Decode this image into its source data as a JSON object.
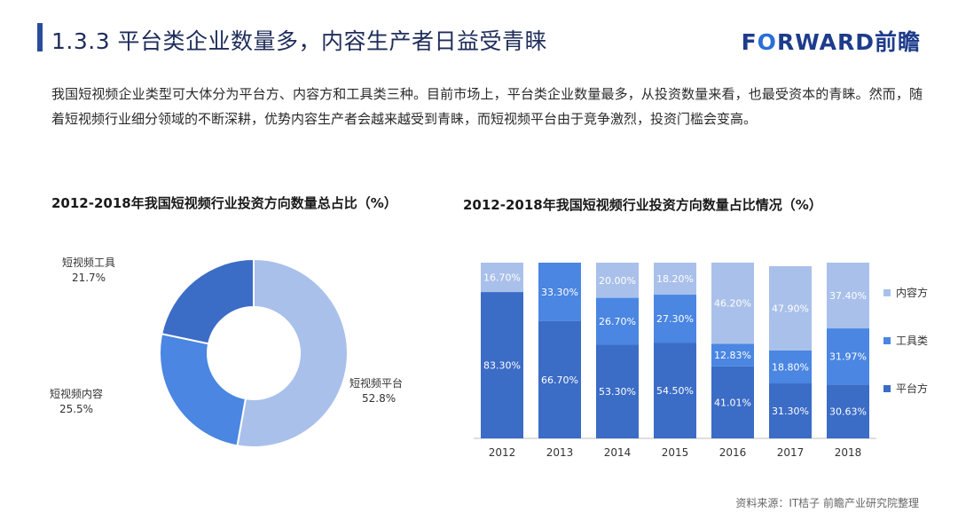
{
  "header": {
    "title": "1.3.3 平台类企业数量多，内容生产者日益受青睐",
    "logo_part1": "F",
    "logo_o": "O",
    "logo_part2": "RWARD前瞻"
  },
  "intro_text": "我国短视频企业类型可大体分为平台方、内容方和工具类三种。目前市场上，平台类企业数量最多，从投资数量来看，也最受资本的青睐。然而，随着短视频行业细分领域的不断深耕，优势内容生产者会越来越受到青睐，而短视频平台由于竞争激烈，投资门槛会变高。",
  "source": "资料来源：IT桔子 前瞻产业研究院整理",
  "colors": {
    "platform": "#3b6cc6",
    "tools": "#4a86e2",
    "content": "#a9c0ea",
    "title_bar": "#2a4d9b"
  },
  "chart_data": [
    {
      "type": "pie",
      "title": "2012-2018年我国短视频行业投资方向数量总占比（%）",
      "slices": [
        {
          "name": "短视频平台",
          "value": 52.8,
          "label": "52.8%",
          "color": "#a9c0ea"
        },
        {
          "name": "短视频内容",
          "value": 25.5,
          "label": "25.5%",
          "color": "#4a86e2"
        },
        {
          "name": "短视频工具",
          "value": 21.7,
          "label": "21.7%",
          "color": "#3b6cc6"
        }
      ],
      "donut": true
    },
    {
      "type": "bar",
      "stacked": true,
      "title": "2012-2018年我国短视频行业投资方向数量占比情况（%）",
      "categories": [
        "2012",
        "2013",
        "2014",
        "2015",
        "2016",
        "2017",
        "2018"
      ],
      "series": [
        {
          "name": "平台方",
          "color": "#3b6cc6",
          "values": [
            83.3,
            66.7,
            53.3,
            54.5,
            41.01,
            31.3,
            30.63
          ],
          "labels": [
            "83.30%",
            "66.70%",
            "53.30%",
            "54.50%",
            "41.01%",
            "31.30%",
            "30.63%"
          ]
        },
        {
          "name": "工具类",
          "color": "#4a86e2",
          "values": [
            0,
            33.3,
            26.7,
            27.3,
            12.83,
            18.8,
            31.97
          ],
          "labels": [
            "",
            "33.30%",
            "26.70%",
            "27.30%",
            "12.83%",
            "18.80%",
            "31.97%"
          ]
        },
        {
          "name": "内容方",
          "color": "#a9c0ea",
          "values": [
            16.7,
            0,
            20.0,
            18.2,
            46.2,
            47.9,
            37.4
          ],
          "labels": [
            "16.70%",
            "",
            "20.00%",
            "18.20%",
            "46.20%",
            "47.90%",
            "37.40%"
          ]
        }
      ],
      "legend_order": [
        "内容方",
        "工具类",
        "平台方"
      ],
      "legend_position": "right",
      "ylim": [
        0,
        100
      ]
    }
  ]
}
